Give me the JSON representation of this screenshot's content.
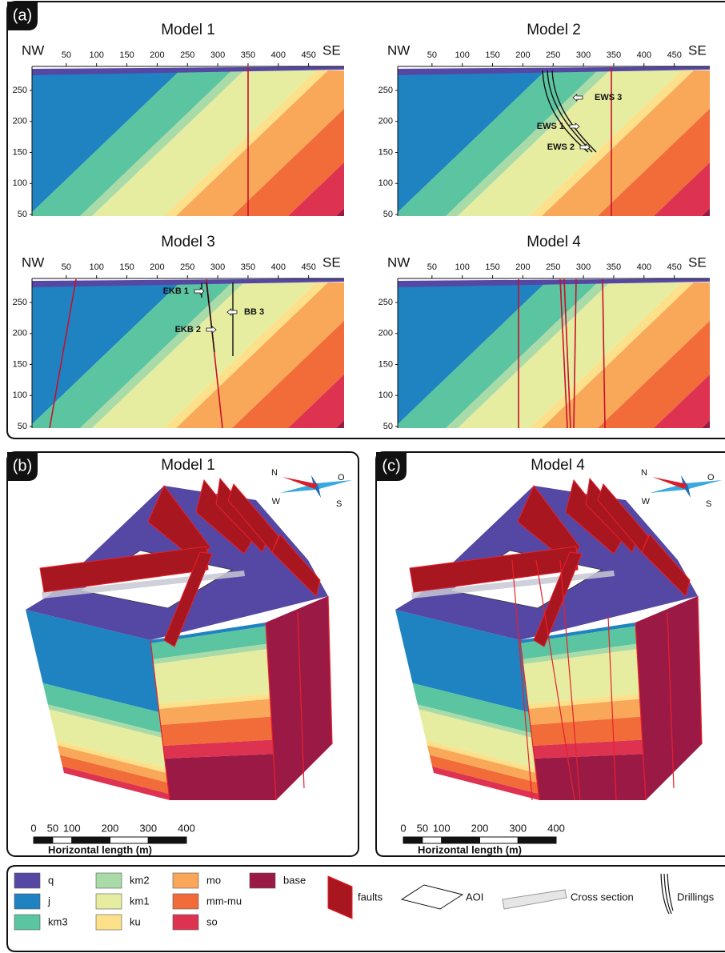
{
  "panel_a": {
    "label": "(a)",
    "sections": [
      {
        "title": "Model 1",
        "left": "NW",
        "right": "SE",
        "x_ticks": [
          50,
          100,
          150,
          200,
          250,
          300,
          350,
          400,
          450
        ],
        "y_ticks": [
          50,
          100,
          150,
          200,
          250
        ]
      },
      {
        "title": "Model 2",
        "left": "NW",
        "right": "SE",
        "x_ticks": [
          50,
          100,
          150,
          200,
          250,
          300,
          350,
          400,
          450
        ],
        "y_ticks": [
          50,
          100,
          150,
          200,
          250
        ],
        "drillings": [
          "EWS 3",
          "EWS 1",
          "EWS 2"
        ]
      },
      {
        "title": "Model 3",
        "left": "NW",
        "right": "SE",
        "x_ticks": [
          50,
          100,
          150,
          200,
          250,
          300,
          350,
          400,
          450
        ],
        "y_ticks": [
          50,
          100,
          150,
          200,
          250
        ],
        "drillings": [
          "EKB 1",
          "EKB 2",
          "BB 3"
        ]
      },
      {
        "title": "Model 4",
        "left": "NW",
        "right": "SE",
        "x_ticks": [
          50,
          100,
          150,
          200,
          250,
          300,
          350,
          400,
          450
        ],
        "y_ticks": [
          50,
          100,
          150,
          200,
          250
        ]
      }
    ]
  },
  "panel_b": {
    "label": "(b)",
    "title": "Model 1",
    "compass": {
      "n": "N",
      "e": "O",
      "w": "W",
      "s": "S"
    },
    "scale": {
      "ticks": [
        0,
        50,
        100,
        200,
        300,
        400
      ],
      "label": "Horizontal length (m)"
    }
  },
  "panel_c": {
    "label": "(c)",
    "title": "Model 4",
    "compass": {
      "n": "N",
      "e": "O",
      "w": "W",
      "s": "S"
    },
    "scale": {
      "ticks": [
        0,
        50,
        100,
        200,
        300,
        400
      ],
      "label": "Horizontal length (m)"
    }
  },
  "legend": {
    "units": [
      {
        "name": "q",
        "color": "#5547a4"
      },
      {
        "name": "j",
        "color": "#1f83c1"
      },
      {
        "name": "km3",
        "color": "#5bc4a0"
      },
      {
        "name": "km2",
        "color": "#a8dba8"
      },
      {
        "name": "km1",
        "color": "#e6eda0"
      },
      {
        "name": "ku",
        "color": "#fde08a"
      },
      {
        "name": "mo",
        "color": "#f9a85a"
      },
      {
        "name": "mm-mu",
        "color": "#f26c3a"
      },
      {
        "name": "so",
        "color": "#dd3350"
      },
      {
        "name": "base",
        "color": "#9b1a45"
      }
    ],
    "symbols": [
      "faults",
      "AOI",
      "Cross section",
      "Drillings"
    ]
  }
}
